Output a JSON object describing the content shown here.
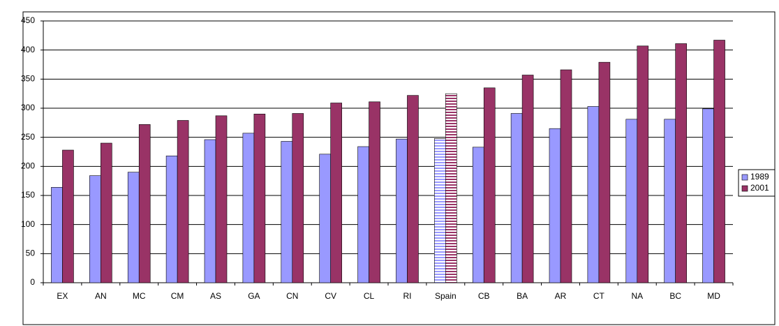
{
  "chart_data": {
    "type": "bar",
    "categories": [
      "EX",
      "AN",
      "MC",
      "CM",
      "AS",
      "GA",
      "CN",
      "CV",
      "CL",
      "RI",
      "Spain",
      "CB",
      "BA",
      "AR",
      "CT",
      "NA",
      "BC",
      "MD"
    ],
    "series": [
      {
        "name": "1989",
        "color": "#9999ff",
        "values": [
          164,
          184,
          190,
          218,
          246,
          257,
          243,
          221,
          234,
          247,
          248,
          233,
          291,
          265,
          303,
          281,
          281,
          299
        ]
      },
      {
        "name": "2001",
        "color": "#993366",
        "values": [
          228,
          240,
          272,
          279,
          287,
          290,
          291,
          309,
          311,
          322,
          325,
          335,
          357,
          366,
          379,
          407,
          411,
          417
        ]
      }
    ],
    "patterned_category": "Spain",
    "ylim": [
      0,
      450
    ],
    "yticks": [
      0,
      50,
      100,
      150,
      200,
      250,
      300,
      350,
      400,
      450
    ],
    "grid": true,
    "legend": "right"
  }
}
